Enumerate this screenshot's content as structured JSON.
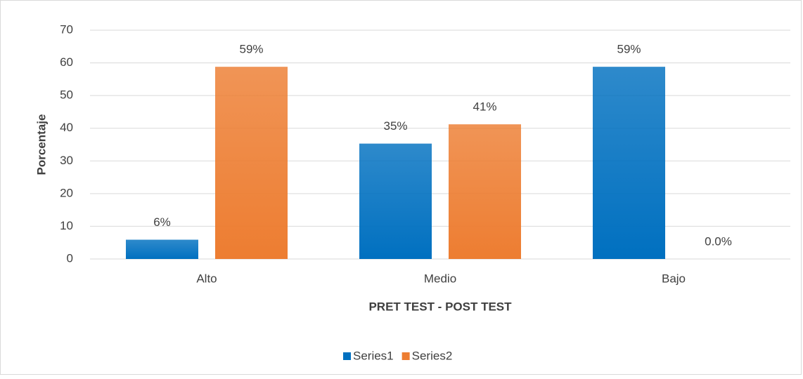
{
  "chart_data": {
    "type": "bar",
    "categories": [
      "Alto",
      "Medio",
      "Bajo"
    ],
    "series": [
      {
        "name": "Series1",
        "color": "#0070c0",
        "values": [
          5.9,
          35.3,
          58.8
        ],
        "value_labels": [
          "6%",
          "35%",
          "59%"
        ]
      },
      {
        "name": "Series2",
        "color": "#ed7d31",
        "values": [
          58.8,
          41.2,
          0
        ],
        "value_labels": [
          "59%",
          "41%",
          "0.0%"
        ]
      }
    ],
    "ylabel": "Porcentaje",
    "xlabel": "PRET TEST - POST TEST",
    "ylim": [
      0,
      70
    ],
    "yticks": [
      0,
      10,
      20,
      30,
      40,
      50,
      60,
      70
    ],
    "grid": true,
    "legend": "bottom"
  }
}
